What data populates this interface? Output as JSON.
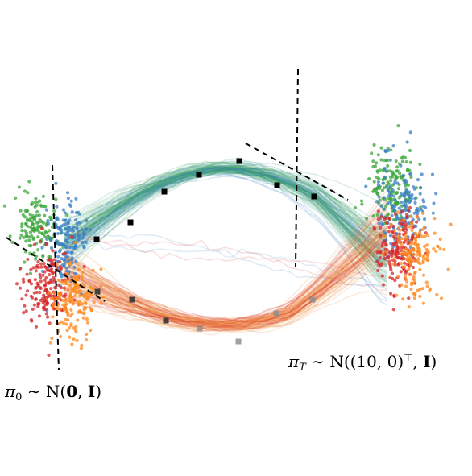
{
  "labels": {
    "start": {
      "pi": "π",
      "sub": "0",
      "sim": " ∼ ",
      "N": "N(",
      "mean": "0",
      "comma": ", ",
      "I": "I",
      "close": ")"
    },
    "end": {
      "pi": "π",
      "sub": "T",
      "sim": " ∼ ",
      "N": "N(",
      "mean": "(10, 0)",
      "sup": "⊤",
      "comma": ", ",
      "I": "I",
      "close": ")"
    }
  },
  "colors": {
    "blue": "#3a7fc4",
    "green": "#3aa63a",
    "red": "#d62728",
    "orange": "#ff8a1f",
    "teal": "#2e9e82",
    "upper_flow": "#3d9a8b",
    "lower_flow": "#f08a3a",
    "marker_dark": "#000000",
    "marker_gray": "#8a8a8a"
  },
  "point_clouds": [
    {
      "id": "start-green",
      "color": "green"
    },
    {
      "id": "start-blue",
      "color": "blue"
    },
    {
      "id": "start-red",
      "color": "red"
    },
    {
      "id": "start-orange",
      "color": "orange"
    },
    {
      "id": "end-green",
      "color": "green"
    },
    {
      "id": "end-blue",
      "color": "blue"
    },
    {
      "id": "end-red",
      "color": "red"
    },
    {
      "id": "end-orange",
      "color": "orange"
    }
  ],
  "flows": [
    {
      "id": "upper",
      "color": "upper_flow"
    },
    {
      "id": "lower",
      "color": "lower_flow"
    }
  ],
  "markers": {
    "upper_count": 8,
    "lower_count": 8
  }
}
